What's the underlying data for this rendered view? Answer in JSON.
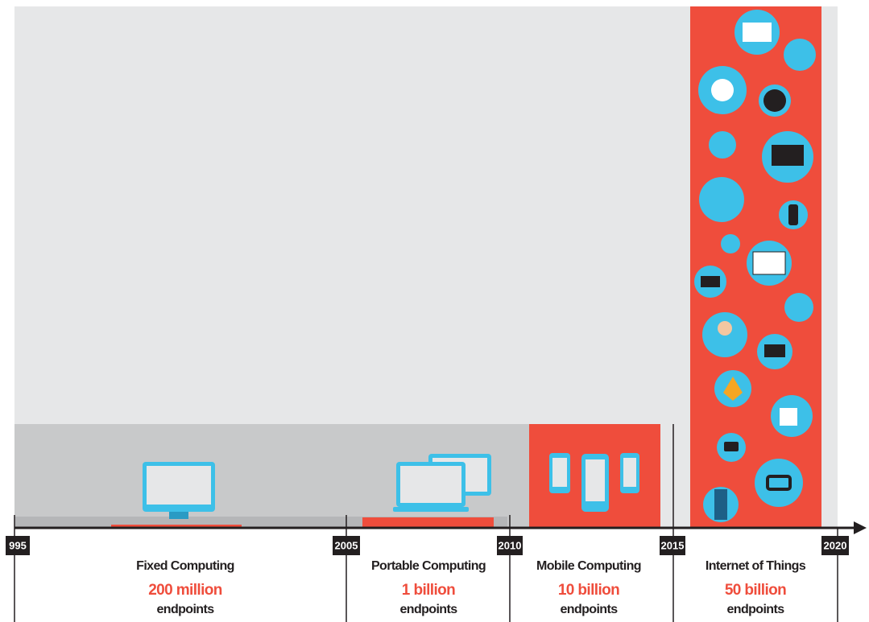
{
  "timeline": {
    "years": [
      "995",
      "2005",
      "2010",
      "2015",
      "2020"
    ],
    "eras": [
      {
        "title": "Fixed Computing",
        "count": "200 million",
        "unit": "endpoints"
      },
      {
        "title": "Portable Computing",
        "count": "1 billion",
        "unit": "endpoints"
      },
      {
        "title": "Mobile Computing",
        "count": "10 billion",
        "unit": "endpoints"
      },
      {
        "title": "Internet of Things",
        "count": "50 billion",
        "unit": "endpoints"
      }
    ]
  }
}
